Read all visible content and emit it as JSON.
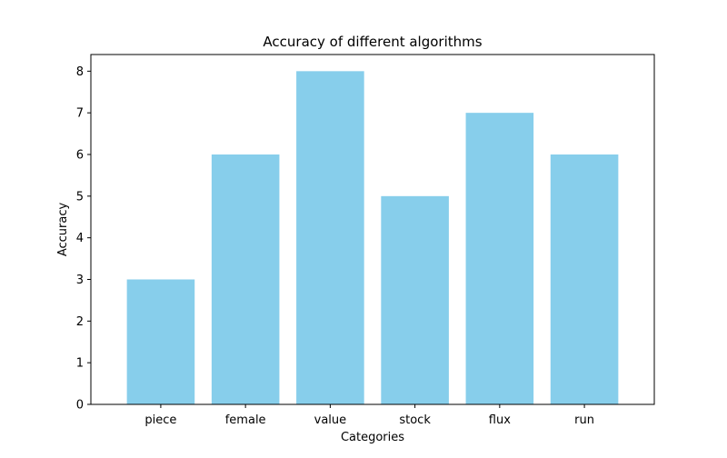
{
  "chart_data": {
    "type": "bar",
    "title": "Accuracy of different algorithms",
    "xlabel": "Categories",
    "ylabel": "Accuracy",
    "categories": [
      "piece",
      "female",
      "value",
      "stock",
      "flux",
      "run"
    ],
    "values": [
      3,
      6,
      8,
      5,
      7,
      6
    ],
    "ylim": [
      0,
      8.4
    ],
    "yticks": [
      0,
      1,
      2,
      3,
      4,
      5,
      6,
      7,
      8
    ],
    "bar_color": "#87ceeb",
    "grid": false,
    "legend": "none"
  }
}
